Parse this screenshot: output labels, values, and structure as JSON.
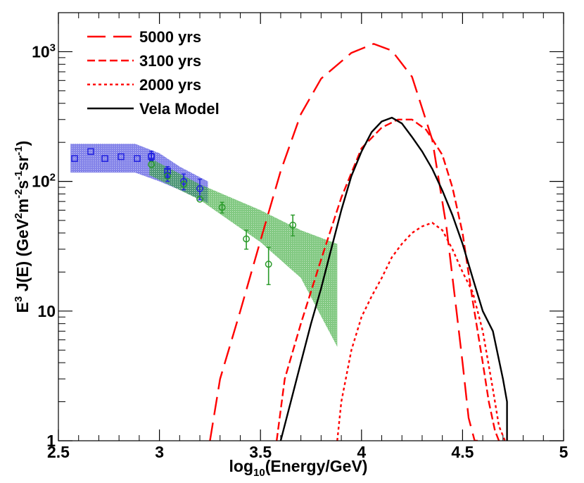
{
  "chart_data": {
    "type": "line",
    "title": "",
    "xlabel": {
      "main": "log",
      "sub": "10",
      "rest": "(Energy/GeV)"
    },
    "ylabel": {
      "p1": "E",
      "s1": "3",
      "p2": " J(E) (GeV",
      "s2": "2",
      "p3": "m",
      "s3": "-2",
      "p4": "s",
      "s4": "-1",
      "p5": "sr",
      "s5": "-1",
      "p6": ")"
    },
    "xlim": [
      2.5,
      5.0
    ],
    "ylim": [
      1,
      2000
    ],
    "yscale": "log",
    "xticks": [
      {
        "v": 2.5,
        "label": "2.5"
      },
      {
        "v": 3.0,
        "label": "3"
      },
      {
        "v": 3.5,
        "label": "3.5"
      },
      {
        "v": 4.0,
        "label": "4"
      },
      {
        "v": 4.5,
        "label": "4.5"
      },
      {
        "v": 5.0,
        "label": "5"
      }
    ],
    "yticks": [
      {
        "v": 1,
        "label": "1"
      },
      {
        "v": 10,
        "label": "10"
      },
      {
        "v": 100,
        "base": "10",
        "exp": "2"
      },
      {
        "v": 1000,
        "base": "10",
        "exp": "3"
      }
    ],
    "legend_position": "top-left",
    "legend": [
      {
        "label": "5000 yrs",
        "color": "#ff0000",
        "dash": "long"
      },
      {
        "label": "3100 yrs",
        "color": "#ff0000",
        "dash": "medium"
      },
      {
        "label": "2000 yrs",
        "color": "#ff0000",
        "dash": "short"
      },
      {
        "label": "Vela Model",
        "color": "#000000",
        "dash": "solid"
      }
    ],
    "series": [
      {
        "name": "5000 yrs",
        "color": "#ff0000",
        "dash": "long",
        "x": [
          3.25,
          3.3,
          3.4,
          3.5,
          3.6,
          3.7,
          3.8,
          3.95,
          4.06,
          4.15,
          4.25,
          4.35,
          4.42,
          4.47,
          4.5,
          4.53,
          4.56,
          4.575
        ],
        "y": [
          1,
          3,
          10,
          35,
          120,
          330,
          620,
          980,
          1150,
          1020,
          640,
          210,
          45,
          10,
          4,
          1.5,
          1,
          1
        ]
      },
      {
        "name": "3100 yrs",
        "color": "#ff0000",
        "dash": "medium",
        "x": [
          3.58,
          3.62,
          3.7,
          3.8,
          3.9,
          4.0,
          4.1,
          4.18,
          4.25,
          4.32,
          4.4,
          4.45,
          4.5,
          4.55,
          4.6,
          4.63,
          4.66,
          4.68
        ],
        "y": [
          1,
          3,
          8,
          25,
          75,
          180,
          260,
          300,
          300,
          250,
          160,
          90,
          40,
          12,
          4,
          2,
          1.2,
          1
        ]
      },
      {
        "name": "2000 yrs",
        "color": "#ff0000",
        "dash": "short",
        "x": [
          3.88,
          3.9,
          3.95,
          4.0,
          4.05,
          4.1,
          4.15,
          4.2,
          4.25,
          4.3,
          4.35,
          4.4,
          4.45,
          4.5,
          4.55,
          4.6,
          4.65,
          4.68,
          4.71
        ],
        "y": [
          1,
          2,
          5,
          9,
          13,
          18,
          26,
          33,
          40,
          45,
          48,
          42,
          30,
          20,
          14,
          7,
          2.5,
          1.3,
          1
        ]
      },
      {
        "name": "Vela Model",
        "color": "#000000",
        "dash": "solid",
        "x": [
          3.6,
          3.65,
          3.7,
          3.75,
          3.8,
          3.85,
          3.9,
          3.95,
          4.0,
          4.05,
          4.1,
          4.15,
          4.2,
          4.25,
          4.3,
          4.35,
          4.4,
          4.45,
          4.5,
          4.55,
          4.6,
          4.65,
          4.7,
          4.72,
          4.72
        ],
        "y": [
          1,
          2,
          4,
          8,
          15,
          30,
          60,
          110,
          170,
          240,
          290,
          310,
          280,
          220,
          170,
          125,
          85,
          55,
          33,
          18,
          10,
          7,
          3,
          2,
          1
        ]
      }
    ],
    "bands": [
      {
        "name": "blue band",
        "color": "#1e1ed6",
        "upper": [
          [
            2.56,
            195
          ],
          [
            2.88,
            195
          ],
          [
            3.0,
            165
          ],
          [
            3.1,
            130
          ],
          [
            3.24,
            100
          ]
        ],
        "lower": [
          [
            2.56,
            117
          ],
          [
            2.88,
            117
          ],
          [
            3.0,
            100
          ],
          [
            3.1,
            86
          ],
          [
            3.24,
            68
          ]
        ]
      },
      {
        "name": "green band",
        "color": "#2fa52f",
        "upper": [
          [
            2.95,
            152
          ],
          [
            3.2,
            95
          ],
          [
            3.5,
            60
          ],
          [
            3.7,
            42
          ],
          [
            3.88,
            33
          ]
        ],
        "lower": [
          [
            2.95,
            112
          ],
          [
            3.2,
            72
          ],
          [
            3.5,
            34
          ],
          [
            3.7,
            18
          ],
          [
            3.88,
            5.3
          ]
        ]
      }
    ],
    "points": [
      {
        "name": "blue squares",
        "marker": "square",
        "color": "#2020e0",
        "x": [
          2.58,
          2.66,
          2.73,
          2.81,
          2.89,
          2.96,
          3.04
        ],
        "y": [
          150,
          170,
          150,
          155,
          150,
          155,
          120
        ],
        "err": [
          0,
          0,
          0,
          0,
          0,
          10,
          10
        ]
      },
      {
        "name": "blue circles",
        "marker": "circle",
        "color": "#2020e0",
        "x": [
          2.96,
          3.04,
          3.12,
          3.2
        ],
        "y": [
          157,
          112,
          100,
          88
        ],
        "err": [
          14,
          12,
          14,
          16
        ]
      },
      {
        "name": "green circles",
        "marker": "circle",
        "color": "#2a9a2a",
        "x": [
          2.96,
          3.04,
          3.12,
          3.2,
          3.31,
          3.43,
          3.54,
          3.66
        ],
        "y": [
          135,
          110,
          95,
          73,
          63,
          36,
          23,
          46
        ],
        "err_up": [
          0,
          0,
          0,
          0,
          6,
          6,
          8,
          9
        ],
        "err_dn": [
          0,
          0,
          0,
          0,
          6,
          6,
          7,
          8
        ]
      }
    ]
  }
}
